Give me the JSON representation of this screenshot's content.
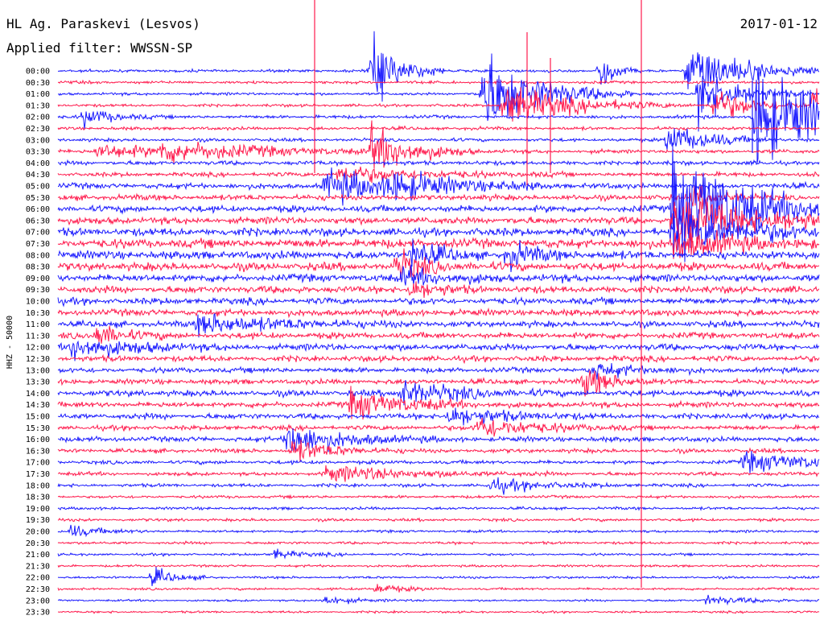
{
  "header": {
    "station": "HL Ag. Paraskevi (Lesvos)",
    "filter": "Applied filter: WWSSN-SP",
    "date": "2017-01-12"
  },
  "chart_data": {
    "type": "line",
    "title": "HL Ag. Paraskevi (Lesvos)",
    "ylabel": "HHZ - 50000",
    "colors": [
      "#1a1aff",
      "#ff1a4d"
    ],
    "rows": [
      "00:00",
      "00:30",
      "01:00",
      "01:30",
      "02:00",
      "02:30",
      "03:00",
      "03:30",
      "04:00",
      "04:30",
      "05:00",
      "05:30",
      "06:00",
      "06:30",
      "07:00",
      "07:30",
      "08:00",
      "08:30",
      "09:00",
      "09:30",
      "10:00",
      "10:30",
      "11:00",
      "11:30",
      "12:00",
      "12:30",
      "13:00",
      "13:30",
      "14:00",
      "14:30",
      "15:00",
      "15:30",
      "16:00",
      "16:30",
      "17:00",
      "17:30",
      "18:00",
      "18:30",
      "19:00",
      "19:30",
      "20:00",
      "20:30",
      "21:00",
      "21:30",
      "22:00",
      "22:30",
      "23:00",
      "23:30"
    ],
    "noise_level": [
      0.3,
      0.3,
      0.3,
      0.3,
      0.35,
      0.35,
      0.35,
      0.4,
      0.45,
      0.45,
      0.6,
      0.6,
      0.7,
      0.75,
      0.85,
      0.95,
      0.9,
      0.85,
      0.8,
      0.75,
      0.7,
      0.7,
      0.65,
      0.65,
      0.7,
      0.6,
      0.55,
      0.55,
      0.65,
      0.6,
      0.6,
      0.5,
      0.55,
      0.45,
      0.4,
      0.4,
      0.35,
      0.3,
      0.3,
      0.3,
      0.28,
      0.28,
      0.25,
      0.25,
      0.25,
      0.25,
      0.22,
      0.22
    ],
    "events": [
      {
        "row": 0,
        "minute": 21.3,
        "amp": 30,
        "dur": 0.5
      },
      {
        "row": 2,
        "minute": 16.7,
        "amp": 55,
        "dur": 2
      },
      {
        "row": 3,
        "minute": 17.5,
        "amp": 25,
        "dur": 2.5
      },
      {
        "row": 4,
        "minute": 1.0,
        "amp": 12,
        "dur": 1
      },
      {
        "row": 4,
        "minute": 29.0,
        "amp": 12,
        "dur": 1.5
      },
      {
        "row": 3,
        "minute": 25.8,
        "amp": 20,
        "dur": 1.5
      },
      {
        "row": 2,
        "minute": 25.2,
        "amp": 35,
        "dur": 1.5
      },
      {
        "row": 4,
        "minute": 27.5,
        "amp": 40,
        "dur": 2
      },
      {
        "row": 7,
        "minute": 1.5,
        "amp": 8,
        "dur": 3
      },
      {
        "row": 7,
        "minute": 4.0,
        "amp": 10,
        "dur": 4
      },
      {
        "row": 0,
        "minute": 12.3,
        "amp": 45,
        "dur": 1
      },
      {
        "row": 7,
        "minute": 12.3,
        "amp": 30,
        "dur": 1.5
      },
      {
        "row": 10,
        "minute": 10.5,
        "amp": 20,
        "dur": 3
      },
      {
        "row": 10,
        "minute": 13.0,
        "amp": 12,
        "dur": 2
      },
      {
        "row": 9,
        "minute": 11.0,
        "amp": 10,
        "dur": 3
      },
      {
        "row": 0,
        "minute": 24.8,
        "amp": 35,
        "dur": 2
      },
      {
        "row": 3,
        "minute": 29.7,
        "amp": 25,
        "dur": 1.5
      },
      {
        "row": 4,
        "minute": 27.4,
        "amp": 30,
        "dur": 1.5
      },
      {
        "row": 6,
        "minute": 24.0,
        "amp": 20,
        "dur": 1.5
      },
      {
        "row": 11,
        "minute": 25.0,
        "amp": 15,
        "dur": 1
      },
      {
        "row": 12,
        "minute": 24.2,
        "amp": 70,
        "dur": 3
      },
      {
        "row": 13,
        "minute": 24.2,
        "amp": 35,
        "dur": 3
      },
      {
        "row": 14,
        "minute": 24.2,
        "amp": 25,
        "dur": 3
      },
      {
        "row": 15,
        "minute": 24.2,
        "amp": 20,
        "dur": 2
      },
      {
        "row": 16,
        "minute": 13.9,
        "amp": 18,
        "dur": 1
      },
      {
        "row": 17,
        "minute": 13.3,
        "amp": 20,
        "dur": 1
      },
      {
        "row": 16,
        "minute": 17.7,
        "amp": 15,
        "dur": 1
      },
      {
        "row": 18,
        "minute": 13.6,
        "amp": 12,
        "dur": 1.5
      },
      {
        "row": 19,
        "minute": 13.8,
        "amp": 12,
        "dur": 1
      },
      {
        "row": 24,
        "minute": 0.5,
        "amp": 15,
        "dur": 2
      },
      {
        "row": 22,
        "minute": 5.5,
        "amp": 12,
        "dur": 3
      },
      {
        "row": 23,
        "minute": 1.5,
        "amp": 14,
        "dur": 1
      },
      {
        "row": 26,
        "minute": 21.0,
        "amp": 10,
        "dur": 1.5
      },
      {
        "row": 27,
        "minute": 20.7,
        "amp": 20,
        "dur": 1
      },
      {
        "row": 28,
        "minute": 13.5,
        "amp": 15,
        "dur": 2
      },
      {
        "row": 29,
        "minute": 11.5,
        "amp": 18,
        "dur": 2
      },
      {
        "row": 30,
        "minute": 15.3,
        "amp": 12,
        "dur": 2
      },
      {
        "row": 31,
        "minute": 16.5,
        "amp": 14,
        "dur": 2
      },
      {
        "row": 32,
        "minute": 9.0,
        "amp": 20,
        "dur": 2
      },
      {
        "row": 33,
        "minute": 9.2,
        "amp": 14,
        "dur": 1.5
      },
      {
        "row": 34,
        "minute": 27.0,
        "amp": 12,
        "dur": 3
      },
      {
        "row": 35,
        "minute": 10.5,
        "amp": 10,
        "dur": 3
      },
      {
        "row": 36,
        "minute": 17.0,
        "amp": 8,
        "dur": 2
      },
      {
        "row": 40,
        "minute": 0.5,
        "amp": 8,
        "dur": 1
      },
      {
        "row": 42,
        "minute": 8.5,
        "amp": 6,
        "dur": 1
      },
      {
        "row": 44,
        "minute": 3.7,
        "amp": 12,
        "dur": 0.8
      },
      {
        "row": 45,
        "minute": 12.5,
        "amp": 8,
        "dur": 0.8
      },
      {
        "row": 46,
        "minute": 10.5,
        "amp": 6,
        "dur": 1
      },
      {
        "row": 46,
        "minute": 25.5,
        "amp": 6,
        "dur": 1.5
      }
    ],
    "ylim": [
      0,
      30
    ],
    "grid": false
  }
}
